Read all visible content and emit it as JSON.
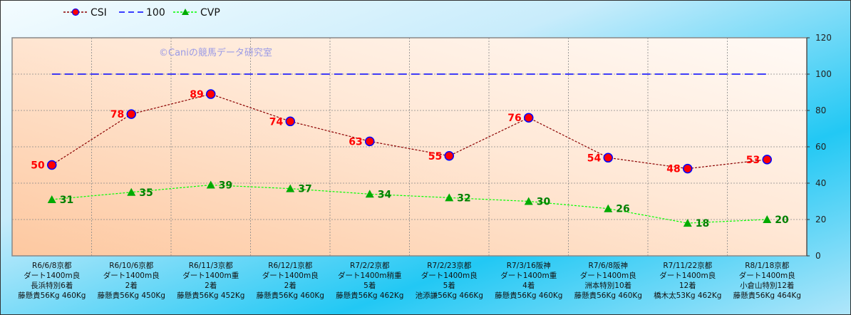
{
  "chart_data": {
    "type": "line",
    "watermark": "©Caniの競馬データ研究室",
    "categories": [
      [
        "R6/6/8京都",
        "ダート1400m良",
        "長浜特別6着",
        "藤懸貴56Kg 460Kg"
      ],
      [
        "R6/10/6京都",
        "ダート1400m良",
        "2着",
        "藤懸貴56Kg 450Kg"
      ],
      [
        "R6/11/3京都",
        "ダート1400m重",
        "2着",
        "藤懸貴56Kg 452Kg"
      ],
      [
        "R6/12/1京都",
        "ダート1400m良",
        "2着",
        "藤懸貴56Kg 460Kg"
      ],
      [
        "R7/2/2京都",
        "ダート1400m稍重",
        "5着",
        "藤懸貴56Kg 462Kg"
      ],
      [
        "R7/2/23京都",
        "ダート1400m良",
        "5着",
        "池添謙56Kg 466Kg"
      ],
      [
        "R7/3/16阪神",
        "ダート1400m重",
        "4着",
        "藤懸貴56Kg 460Kg"
      ],
      [
        "R7/6/8阪神",
        "ダート1400m良",
        "洲本特別10着",
        "藤懸貴56Kg 460Kg"
      ],
      [
        "R7/11/22京都",
        "ダート1400m良",
        "12着",
        "橋木太53Kg 462Kg"
      ],
      [
        "R8/1/18京都",
        "ダート1400m良",
        "小倉山特別12着",
        "藤懸貴56Kg 464Kg"
      ]
    ],
    "series": [
      {
        "name": "CSI",
        "values": [
          50,
          78,
          89,
          74,
          63,
          55,
          76,
          54,
          48,
          53
        ],
        "color": "#8b0000",
        "marker": "circle",
        "marker_fill": "#ff0000",
        "marker_edge": "#0000ff",
        "label_color": "#ff0000"
      },
      {
        "name": "100",
        "values": [
          100,
          100,
          100,
          100,
          100,
          100,
          100,
          100,
          100,
          100
        ],
        "color": "#0000ff",
        "marker": "none"
      },
      {
        "name": "CVP",
        "values": [
          31,
          35,
          39,
          37,
          34,
          32,
          30,
          26,
          18,
          20
        ],
        "color": "#00ff00",
        "marker": "triangle",
        "marker_fill": "#00aa00",
        "label_color": "#008000"
      }
    ],
    "ylim": [
      0,
      120
    ],
    "yticks": [
      "0",
      "20",
      "40",
      "60",
      "80",
      "100",
      "120"
    ],
    "grid": true,
    "legend": "top-left"
  }
}
